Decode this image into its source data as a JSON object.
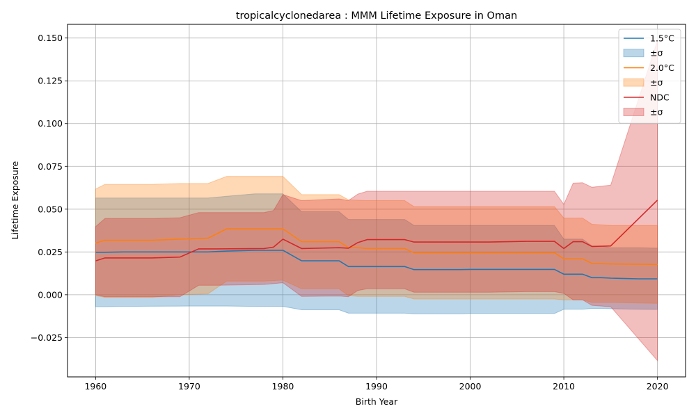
{
  "chart_data": {
    "type": "line",
    "title": "tropicalcyclonedarea : MMM Lifetime Exposure in Oman",
    "xlabel": "Birth Year",
    "ylabel": "Lifetime Exposure",
    "xlim": [
      1957.0,
      2023.0
    ],
    "ylim": [
      -0.048,
      0.158
    ],
    "xticks": [
      1960,
      1970,
      1980,
      1990,
      2000,
      2010,
      2020
    ],
    "xtick_labels": [
      "1960",
      "1970",
      "1980",
      "1990",
      "2000",
      "2010",
      "2020"
    ],
    "yticks": [
      -0.025,
      0.0,
      0.025,
      0.05,
      0.075,
      0.1,
      0.125,
      0.15
    ],
    "ytick_labels": [
      "−0.025",
      "0.000",
      "0.025",
      "0.050",
      "0.075",
      "0.100",
      "0.125",
      "0.150"
    ],
    "grid": true,
    "legend_position": "top-right",
    "legend": [
      {
        "label": "1.5°C",
        "kind": "line",
        "color": "#1f77b4"
      },
      {
        "label": "±σ",
        "kind": "band",
        "color": "#1f77b4"
      },
      {
        "label": "2.0°C",
        "kind": "line",
        "color": "#ff7f0e"
      },
      {
        "label": "±σ",
        "kind": "band",
        "color": "#ff7f0e"
      },
      {
        "label": "NDC",
        "kind": "line",
        "color": "#d62728"
      },
      {
        "label": "±σ",
        "kind": "band",
        "color": "#d62728"
      }
    ],
    "series": [
      {
        "name": "1.5°C",
        "color": "#1f77b4",
        "band_opacity": 0.3,
        "x": [
          1960,
          1961,
          1963,
          1966,
          1970,
          1972,
          1974,
          1977,
          1980,
          1982,
          1986,
          1987,
          1990,
          1993,
          1994,
          1999,
          2000,
          2009,
          2010,
          2012,
          2013,
          2014,
          2015,
          2018,
          2020
        ],
        "mean": [
          0.0248,
          0.0248,
          0.025,
          0.025,
          0.025,
          0.025,
          0.0255,
          0.026,
          0.026,
          0.0198,
          0.0198,
          0.0165,
          0.0165,
          0.0165,
          0.0147,
          0.0147,
          0.0148,
          0.0148,
          0.012,
          0.012,
          0.01,
          0.01,
          0.0097,
          0.0093,
          0.0093
        ],
        "upper": [
          0.0565,
          0.0565,
          0.0565,
          0.0565,
          0.0565,
          0.0565,
          0.0575,
          0.059,
          0.059,
          0.0485,
          0.0485,
          0.044,
          0.044,
          0.044,
          0.0405,
          0.0405,
          0.0405,
          0.0405,
          0.0325,
          0.0325,
          0.0285,
          0.0285,
          0.0275,
          0.0275,
          0.0272
        ],
        "lower": [
          -0.007,
          -0.007,
          -0.0068,
          -0.0067,
          -0.0066,
          -0.0066,
          -0.0066,
          -0.0068,
          -0.0068,
          -0.0088,
          -0.0088,
          -0.0108,
          -0.0108,
          -0.0108,
          -0.0112,
          -0.0112,
          -0.011,
          -0.011,
          -0.0085,
          -0.0085,
          -0.008,
          -0.008,
          -0.0082,
          -0.0085,
          -0.0086
        ]
      },
      {
        "name": "2.0°C",
        "color": "#ff7f0e",
        "band_opacity": 0.3,
        "x": [
          1960,
          1961,
          1963,
          1966,
          1969,
          1972,
          1974,
          1978,
          1980,
          1982,
          1986,
          1987,
          1988,
          1989,
          1993,
          1994,
          2009,
          2010,
          2012,
          2013,
          2015,
          2020
        ],
        "mean": [
          0.0302,
          0.0318,
          0.0318,
          0.0318,
          0.0325,
          0.033,
          0.0385,
          0.0385,
          0.0385,
          0.031,
          0.031,
          0.0275,
          0.0275,
          0.027,
          0.027,
          0.0245,
          0.0245,
          0.021,
          0.021,
          0.0183,
          0.018,
          0.0177
        ],
        "upper": [
          0.0618,
          0.0645,
          0.0645,
          0.0645,
          0.065,
          0.065,
          0.0692,
          0.0692,
          0.0692,
          0.0585,
          0.0585,
          0.0555,
          0.0552,
          0.055,
          0.055,
          0.0515,
          0.0515,
          0.0448,
          0.0448,
          0.0412,
          0.0405,
          0.0405
        ],
        "lower": [
          -0.0005,
          -0.0015,
          -0.0015,
          -0.0015,
          0.0,
          0.0005,
          0.008,
          0.008,
          0.0085,
          0.0035,
          0.0035,
          -0.0005,
          -0.001,
          -0.001,
          -0.001,
          -0.0025,
          -0.0025,
          -0.003,
          -0.003,
          -0.0045,
          -0.0045,
          -0.005
        ]
      },
      {
        "name": "NDC",
        "color": "#d62728",
        "band_opacity": 0.3,
        "x": [
          1960,
          1961,
          1963,
          1966,
          1969,
          1971,
          1973,
          1978,
          1979,
          1980,
          1982,
          1986,
          1987,
          1988,
          1989,
          1993,
          1994,
          2002,
          2006,
          2009,
          2010,
          2011,
          2012,
          2013,
          2015,
          2020
        ],
        "mean": [
          0.0198,
          0.0215,
          0.0215,
          0.0215,
          0.022,
          0.0268,
          0.0268,
          0.027,
          0.0278,
          0.0325,
          0.027,
          0.0275,
          0.0272,
          0.0305,
          0.0322,
          0.0322,
          0.0308,
          0.0308,
          0.0312,
          0.0312,
          0.027,
          0.031,
          0.031,
          0.0282,
          0.0285,
          0.0553
        ],
        "upper": [
          0.0398,
          0.0445,
          0.0445,
          0.0445,
          0.045,
          0.048,
          0.048,
          0.048,
          0.0492,
          0.0585,
          0.055,
          0.056,
          0.055,
          0.0588,
          0.0605,
          0.0605,
          0.0605,
          0.0605,
          0.0605,
          0.0605,
          0.0528,
          0.0652,
          0.0655,
          0.0628,
          0.064,
          0.1485
        ],
        "lower": [
          0.0,
          -0.0012,
          -0.0012,
          -0.0012,
          -0.0012,
          0.0055,
          0.0055,
          0.006,
          0.0065,
          0.007,
          -0.001,
          -0.0008,
          -0.0012,
          0.0025,
          0.0035,
          0.0035,
          0.0015,
          0.0015,
          0.0018,
          0.0018,
          0.0008,
          -0.003,
          -0.003,
          -0.0062,
          -0.007,
          -0.0385
        ]
      }
    ]
  }
}
